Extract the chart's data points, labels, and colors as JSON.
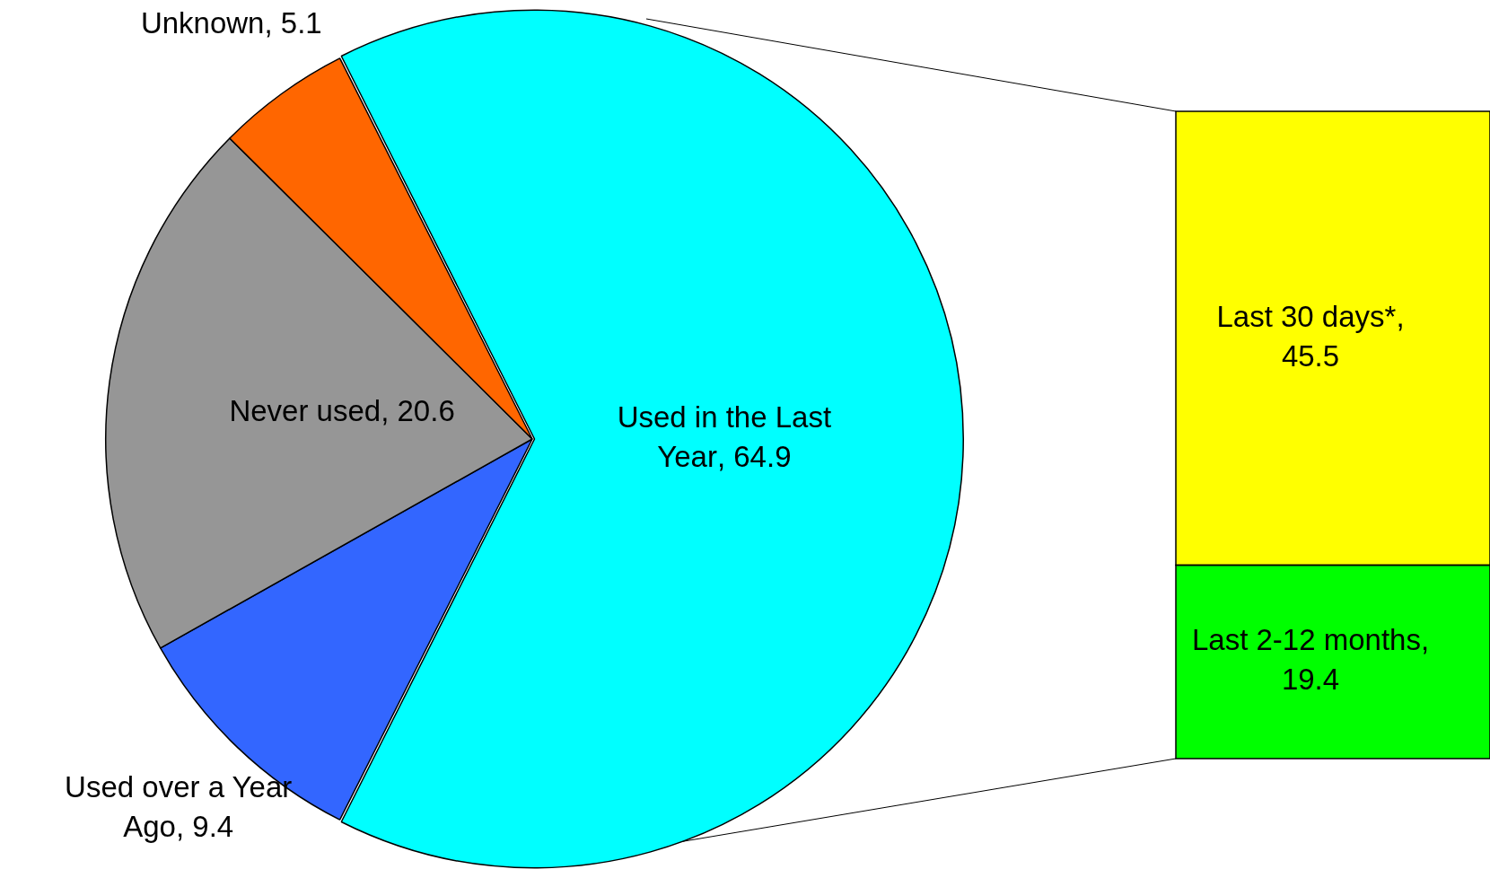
{
  "chart_data": [
    {
      "type": "pie",
      "categories": [
        "Used in the Last Year",
        "Used over a Year Ago",
        "Never used",
        "Unknown"
      ],
      "values": [
        64.9,
        9.4,
        20.6,
        5.1
      ],
      "colors": [
        "#00ffff",
        "#3366ff",
        "#969696",
        "#ff6600"
      ],
      "value_labels": [
        ", 64.9",
        ", 9.4",
        ", 20.6",
        ", 5.1"
      ]
    },
    {
      "type": "bar",
      "stacked": true,
      "categories": [
        null
      ],
      "series": [
        {
          "name": "Last 2-12 months,",
          "color": "#00ff00",
          "values": [
            19.4
          ]
        },
        {
          "name": "Last 30 days*,",
          "color": "#ffff00",
          "values": [
            45.5
          ]
        }
      ],
      "data_labels": true
    }
  ]
}
